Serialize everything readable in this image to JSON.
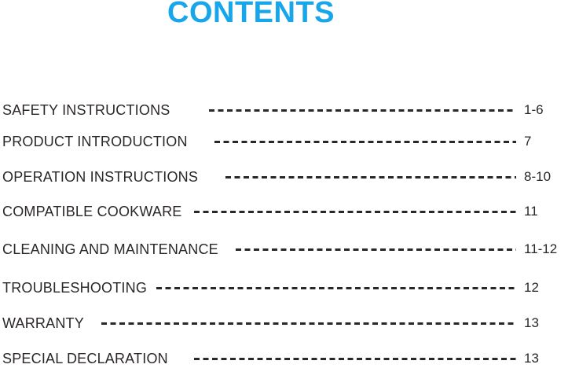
{
  "theme": {
    "accent_color": "#17A6EA",
    "text_color": "#2B2728"
  },
  "header": {
    "title": "CONTENTS"
  },
  "toc": {
    "items": [
      {
        "label": "SAFETY INSTRUCTIONS",
        "page": "1-6"
      },
      {
        "label": "PRODUCT INTRODUCTION",
        "page": "7"
      },
      {
        "label": "OPERATION INSTRUCTIONS",
        "page": "8-10"
      },
      {
        "label": "COMPATIBLE COOKWARE",
        "page": "11"
      },
      {
        "label": "CLEANING AND MAINTENANCE",
        "page": "11-12"
      },
      {
        "label": "TROUBLESHOOTING",
        "page": "12"
      },
      {
        "label": "WARRANTY",
        "page": "13"
      },
      {
        "label": "SPECIAL DECLARATION",
        "page": "13"
      }
    ]
  }
}
